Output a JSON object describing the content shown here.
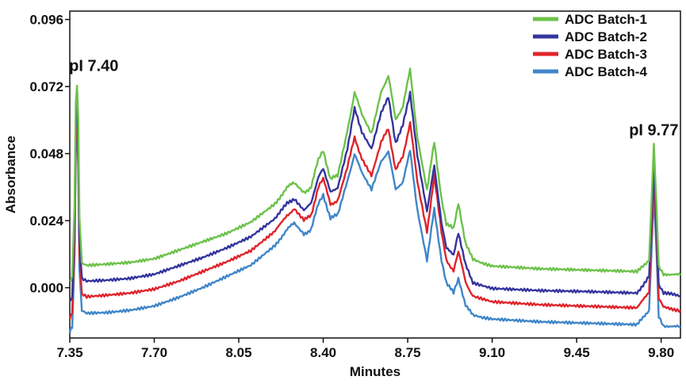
{
  "chart_data": {
    "type": "line",
    "xlabel": "Minutes",
    "ylabel": "Absorbance",
    "xlim": [
      7.35,
      9.88
    ],
    "ylim": [
      -0.018,
      0.099
    ],
    "x_ticks": [
      7.35,
      7.7,
      8.05,
      8.4,
      8.75,
      9.1,
      9.45,
      9.8
    ],
    "x_tick_labels": [
      "7.35",
      "7.70",
      "8.05",
      "8.40",
      "8.75",
      "9.10",
      "9.45",
      "9.80"
    ],
    "y_ticks": [
      0.0,
      0.024,
      0.048,
      0.072,
      0.096
    ],
    "y_tick_labels": [
      "0.000",
      "0.024",
      "0.048",
      "0.072",
      "0.096"
    ],
    "grid": false,
    "legend_position": "top-right",
    "annotations": [
      {
        "text": "pI 7.40",
        "x": 7.38,
        "y": 0.0775
      },
      {
        "text": "pI 9.77",
        "x": 9.7,
        "y": 0.0545
      }
    ],
    "series": [
      {
        "name": "ADC Batch-1",
        "color": "#6cc24a",
        "x": [
          7.35,
          7.36,
          7.37,
          7.375,
          7.38,
          7.385,
          7.39,
          7.4,
          7.42,
          7.5,
          7.6,
          7.7,
          7.8,
          7.9,
          8.0,
          8.1,
          8.2,
          8.25,
          8.28,
          8.32,
          8.35,
          8.38,
          8.4,
          8.43,
          8.46,
          8.5,
          8.53,
          8.56,
          8.6,
          8.64,
          8.67,
          8.7,
          8.73,
          8.76,
          8.79,
          8.83,
          8.86,
          8.89,
          8.91,
          8.94,
          8.96,
          8.99,
          9.02,
          9.06,
          9.1,
          9.3,
          9.5,
          9.7,
          9.75,
          9.77,
          9.78,
          9.79,
          9.81,
          9.88
        ],
        "values": [
          0.0018,
          0.004,
          0.03,
          0.066,
          0.073,
          0.06,
          0.025,
          0.009,
          0.0082,
          0.0086,
          0.0092,
          0.0105,
          0.0135,
          0.0165,
          0.0195,
          0.0235,
          0.03,
          0.036,
          0.0375,
          0.034,
          0.036,
          0.046,
          0.049,
          0.039,
          0.04,
          0.056,
          0.07,
          0.062,
          0.055,
          0.07,
          0.076,
          0.06,
          0.065,
          0.078,
          0.054,
          0.035,
          0.052,
          0.032,
          0.023,
          0.021,
          0.03,
          0.016,
          0.01,
          0.0085,
          0.0075,
          0.0065,
          0.006,
          0.0055,
          0.01,
          0.052,
          0.03,
          0.008,
          0.005,
          0.0045
        ]
      },
      {
        "name": "ADC Batch-2",
        "color": "#34349e",
        "x": [
          7.35,
          7.36,
          7.37,
          7.375,
          7.38,
          7.385,
          7.39,
          7.4,
          7.42,
          7.5,
          7.6,
          7.7,
          7.8,
          7.9,
          8.0,
          8.1,
          8.2,
          8.25,
          8.28,
          8.32,
          8.35,
          8.38,
          8.4,
          8.43,
          8.46,
          8.5,
          8.53,
          8.56,
          8.6,
          8.64,
          8.67,
          8.7,
          8.73,
          8.76,
          8.79,
          8.83,
          8.86,
          8.89,
          8.91,
          8.94,
          8.96,
          8.99,
          9.02,
          9.06,
          9.1,
          9.3,
          9.5,
          9.7,
          9.75,
          9.77,
          9.78,
          9.79,
          9.81,
          9.88
        ],
        "values": [
          -0.005,
          -0.003,
          0.025,
          0.06,
          0.066,
          0.053,
          0.018,
          0.0035,
          0.0025,
          0.0028,
          0.0035,
          0.005,
          0.008,
          0.011,
          0.0145,
          0.0185,
          0.025,
          0.03,
          0.032,
          0.028,
          0.03,
          0.04,
          0.043,
          0.034,
          0.036,
          0.05,
          0.064,
          0.056,
          0.05,
          0.063,
          0.068,
          0.052,
          0.058,
          0.07,
          0.047,
          0.027,
          0.044,
          0.023,
          0.014,
          0.012,
          0.02,
          0.008,
          0.002,
          0.001,
          0.0,
          -0.0008,
          -0.0012,
          -0.0018,
          0.004,
          0.045,
          0.024,
          0.001,
          -0.002,
          -0.003
        ]
      },
      {
        "name": "ADC Batch-3",
        "color": "#e0242b",
        "x": [
          7.35,
          7.36,
          7.37,
          7.375,
          7.38,
          7.385,
          7.39,
          7.4,
          7.42,
          7.5,
          7.6,
          7.7,
          7.8,
          7.9,
          8.0,
          8.1,
          8.2,
          8.25,
          8.28,
          8.32,
          8.35,
          8.38,
          8.4,
          8.43,
          8.46,
          8.5,
          8.53,
          8.56,
          8.6,
          8.64,
          8.67,
          8.7,
          8.73,
          8.76,
          8.79,
          8.83,
          8.86,
          8.89,
          8.91,
          8.94,
          8.96,
          8.99,
          9.02,
          9.06,
          9.1,
          9.3,
          9.5,
          9.7,
          9.75,
          9.77,
          9.78,
          9.79,
          9.81,
          9.88
        ],
        "values": [
          -0.011,
          -0.009,
          0.018,
          0.055,
          0.061,
          0.048,
          0.012,
          -0.0025,
          -0.0035,
          -0.003,
          -0.0022,
          -0.0008,
          0.002,
          0.0055,
          0.009,
          0.013,
          0.02,
          0.026,
          0.028,
          0.024,
          0.026,
          0.036,
          0.039,
          0.03,
          0.031,
          0.043,
          0.054,
          0.046,
          0.04,
          0.052,
          0.057,
          0.042,
          0.047,
          0.059,
          0.038,
          0.02,
          0.04,
          0.02,
          0.01,
          0.006,
          0.013,
          0.002,
          -0.003,
          -0.004,
          -0.005,
          -0.006,
          -0.0065,
          -0.007,
          -0.002,
          0.04,
          0.02,
          -0.004,
          -0.007,
          -0.008
        ]
      },
      {
        "name": "ADC Batch-4",
        "color": "#3f86c9",
        "x": [
          7.35,
          7.36,
          7.37,
          7.375,
          7.38,
          7.385,
          7.39,
          7.4,
          7.42,
          7.5,
          7.6,
          7.7,
          7.8,
          7.9,
          8.0,
          8.1,
          8.2,
          8.25,
          8.28,
          8.32,
          8.35,
          8.38,
          8.4,
          8.43,
          8.46,
          8.5,
          8.53,
          8.56,
          8.6,
          8.64,
          8.67,
          8.7,
          8.73,
          8.76,
          8.79,
          8.83,
          8.86,
          8.89,
          8.91,
          8.94,
          8.96,
          8.99,
          9.02,
          9.06,
          9.1,
          9.3,
          9.5,
          9.7,
          9.75,
          9.77,
          9.78,
          9.79,
          9.81,
          9.88
        ],
        "values": [
          -0.016,
          -0.014,
          0.012,
          0.05,
          0.056,
          0.043,
          0.006,
          -0.008,
          -0.009,
          -0.0088,
          -0.008,
          -0.0065,
          -0.0035,
          0.0,
          0.004,
          0.008,
          0.015,
          0.021,
          0.023,
          0.019,
          0.021,
          0.03,
          0.033,
          0.025,
          0.026,
          0.038,
          0.048,
          0.041,
          0.035,
          0.045,
          0.049,
          0.035,
          0.038,
          0.049,
          0.028,
          0.01,
          0.028,
          0.01,
          0.002,
          -0.002,
          0.003,
          -0.006,
          -0.01,
          -0.011,
          -0.0115,
          -0.0125,
          -0.013,
          -0.0135,
          -0.008,
          0.034,
          0.014,
          -0.01,
          -0.0135,
          -0.014
        ]
      }
    ]
  }
}
